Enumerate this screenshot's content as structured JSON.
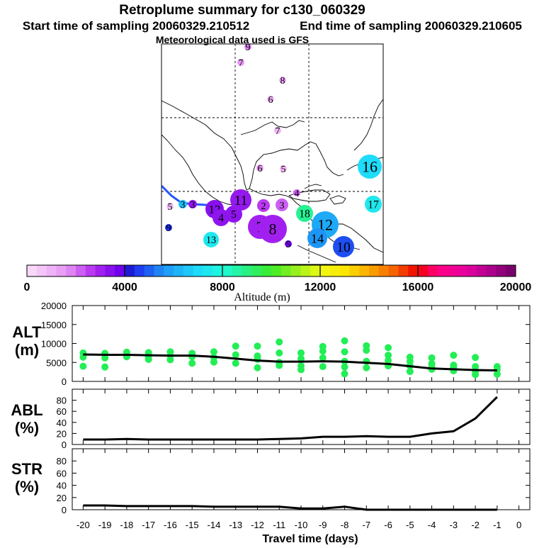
{
  "header": {
    "title": "Retroplume summary for c130_060329",
    "start_label": "Start time of sampling 20060329.210512",
    "end_label": "End time of sampling 20060329.210605",
    "met_label": "Meteorological data used is GFS"
  },
  "map": {
    "trajectory_color": "#2255ff",
    "markers": [
      {
        "label": "9",
        "alt": 1800
      },
      {
        "label": "7",
        "alt": 1600
      },
      {
        "label": "8",
        "alt": 1200
      },
      {
        "label": "6",
        "alt": 900
      },
      {
        "label": "7",
        "alt": 900
      },
      {
        "label": "6",
        "alt": 1500
      },
      {
        "label": "5",
        "alt": 900
      },
      {
        "label": "4",
        "alt": 2200
      },
      {
        "label": "5",
        "alt": 800
      },
      {
        "label": "3",
        "alt": 6400
      },
      {
        "label": "3",
        "alt": 3200
      },
      {
        "label": "12",
        "alt": 3400
      },
      {
        "label": "4",
        "alt": 3300
      },
      {
        "label": "5",
        "alt": 3300
      },
      {
        "label": "11",
        "alt": 3200
      },
      {
        "label": "2",
        "alt": 2600
      },
      {
        "label": "3",
        "alt": 2200
      },
      {
        "label": "7",
        "alt": 3000
      },
      {
        "label": "8",
        "alt": 3000
      },
      {
        "label": "9",
        "alt": 4400
      },
      {
        "label": "13",
        "alt": 7400
      },
      {
        "label": "5",
        "alt": 3800
      },
      {
        "label": "18",
        "alt": 8800
      },
      {
        "label": "12",
        "alt": 6000
      },
      {
        "label": "14",
        "alt": 5600
      },
      {
        "label": "10",
        "alt": 4800
      },
      {
        "label": "16",
        "alt": 7000
      },
      {
        "label": "17",
        "alt": 7400
      }
    ]
  },
  "colorbar": {
    "title": "Altitude (m)",
    "min": 0,
    "max": 20000,
    "steps": 50,
    "tick_labels": [
      "0",
      "4000",
      "8000",
      "12000",
      "16000",
      "20000"
    ],
    "tick_values": [
      0,
      4000,
      8000,
      12000,
      16000,
      20000
    ]
  },
  "chart_data": [
    {
      "type": "scatter",
      "title": "ALT (m)",
      "ylabel": "ALT (m)",
      "ylim": [
        0,
        20000
      ],
      "yticks": [
        "0",
        "5000",
        "10000",
        "15000",
        "20000"
      ],
      "ytick_values": [
        0,
        5000,
        10000,
        15000,
        20000
      ],
      "x": [
        -20,
        -19,
        -18,
        -17,
        -16,
        -15,
        -14,
        -13,
        -12,
        -11,
        -10,
        -9,
        -8,
        -7,
        -6,
        -5,
        -4,
        -3,
        -2,
        -1
      ],
      "median_line": [
        7100,
        7000,
        7000,
        6900,
        6800,
        6800,
        6500,
        6000,
        5500,
        5200,
        5200,
        5300,
        5200,
        4900,
        4600,
        4000,
        3400,
        3200,
        3000,
        2900
      ],
      "points": [
        [
          -20,
          7500
        ],
        [
          -20,
          6400
        ],
        [
          -20,
          4000
        ],
        [
          -19,
          7400
        ],
        [
          -19,
          6200
        ],
        [
          -19,
          3800
        ],
        [
          -18,
          7700
        ],
        [
          -18,
          6500
        ],
        [
          -17,
          7600
        ],
        [
          -17,
          6400
        ],
        [
          -17,
          5800
        ],
        [
          -16,
          7800
        ],
        [
          -16,
          6800
        ],
        [
          -16,
          5700
        ],
        [
          -15,
          7400
        ],
        [
          -15,
          6500
        ],
        [
          -15,
          4800
        ],
        [
          -14,
          7800
        ],
        [
          -14,
          6300
        ],
        [
          -14,
          5100
        ],
        [
          -13,
          9300
        ],
        [
          -13,
          7000
        ],
        [
          -13,
          4800
        ],
        [
          -12,
          9300
        ],
        [
          -12,
          6700
        ],
        [
          -12,
          5800
        ],
        [
          -12,
          3600
        ],
        [
          -11,
          10400
        ],
        [
          -11,
          7500
        ],
        [
          -11,
          5000
        ],
        [
          -11,
          4200
        ],
        [
          -10,
          7500
        ],
        [
          -10,
          6000
        ],
        [
          -10,
          4100
        ],
        [
          -10,
          3100
        ],
        [
          -9,
          9200
        ],
        [
          -9,
          8000
        ],
        [
          -9,
          6200
        ],
        [
          -9,
          3900
        ],
        [
          -8,
          10700
        ],
        [
          -8,
          7800
        ],
        [
          -8,
          5300
        ],
        [
          -8,
          3800
        ],
        [
          -8,
          2000
        ],
        [
          -7,
          9400
        ],
        [
          -7,
          8200
        ],
        [
          -7,
          5300
        ],
        [
          -7,
          3600
        ],
        [
          -6,
          8900
        ],
        [
          -6,
          6900
        ],
        [
          -6,
          5500
        ],
        [
          -6,
          4100
        ],
        [
          -5,
          6400
        ],
        [
          -5,
          5300
        ],
        [
          -5,
          4100
        ],
        [
          -5,
          2600
        ],
        [
          -4,
          6200
        ],
        [
          -4,
          4700
        ],
        [
          -4,
          3800
        ],
        [
          -4,
          3200
        ],
        [
          -3,
          6900
        ],
        [
          -3,
          4300
        ],
        [
          -3,
          3600
        ],
        [
          -3,
          2800
        ],
        [
          -2,
          6300
        ],
        [
          -2,
          3900
        ],
        [
          -2,
          2700
        ],
        [
          -2,
          1800
        ],
        [
          -1,
          3900
        ],
        [
          -1,
          3100
        ],
        [
          -1,
          1900
        ]
      ],
      "point_color": "#22ee55"
    },
    {
      "type": "line",
      "title": "ABL (%)",
      "ylabel": "ABL (%)",
      "ylim": [
        0,
        100
      ],
      "yticks": [
        "0",
        "20",
        "40",
        "60",
        "80"
      ],
      "ytick_values": [
        0,
        20,
        40,
        60,
        80
      ],
      "x": [
        -20,
        -19,
        -18,
        -17,
        -16,
        -15,
        -14,
        -13,
        -12,
        -11,
        -10,
        -9,
        -8,
        -7,
        -6,
        -5,
        -4,
        -3,
        -2,
        -1
      ],
      "values": [
        9,
        9,
        10,
        9,
        9,
        9,
        9,
        9,
        9,
        10,
        11,
        14,
        14,
        15,
        14,
        14,
        20,
        24,
        47,
        86
      ]
    },
    {
      "type": "line",
      "title": "STR (%)",
      "ylabel": "STR (%)",
      "ylim": [
        0,
        100
      ],
      "yticks": [
        "0",
        "20",
        "40",
        "60",
        "80"
      ],
      "ytick_values": [
        0,
        20,
        40,
        60,
        80
      ],
      "x": [
        -20,
        -19,
        -18,
        -17,
        -16,
        -15,
        -14,
        -13,
        -12,
        -11,
        -10,
        -9,
        -8,
        -7,
        -6,
        -5,
        -4,
        -3,
        -2,
        -1
      ],
      "values": [
        7,
        7,
        6,
        6,
        6,
        6,
        5,
        5,
        5,
        5,
        2,
        2,
        5,
        0,
        0,
        0,
        0,
        0,
        0,
        0
      ]
    }
  ],
  "axes": {
    "ylabel_alt_line1": "ALT",
    "ylabel_alt_line2": "(m)",
    "ylabel_abl_line1": "ABL",
    "ylabel_abl_line2": "(%)",
    "ylabel_str_line1": "STR",
    "ylabel_str_line2": "(%)",
    "xlabel": "Travel time (days)",
    "xticks": [
      "-20",
      "-19",
      "-18",
      "-17",
      "-16",
      "-15",
      "-14",
      "-13",
      "-12",
      "-11",
      "-10",
      "-9",
      "-8",
      "-7",
      "-6",
      "-5",
      "-4",
      "-3",
      "-2",
      "-1",
      "0"
    ],
    "xtick_values": [
      -20,
      -19,
      -18,
      -17,
      -16,
      -15,
      -14,
      -13,
      -12,
      -11,
      -10,
      -9,
      -8,
      -7,
      -6,
      -5,
      -4,
      -3,
      -2,
      -1,
      0
    ]
  }
}
